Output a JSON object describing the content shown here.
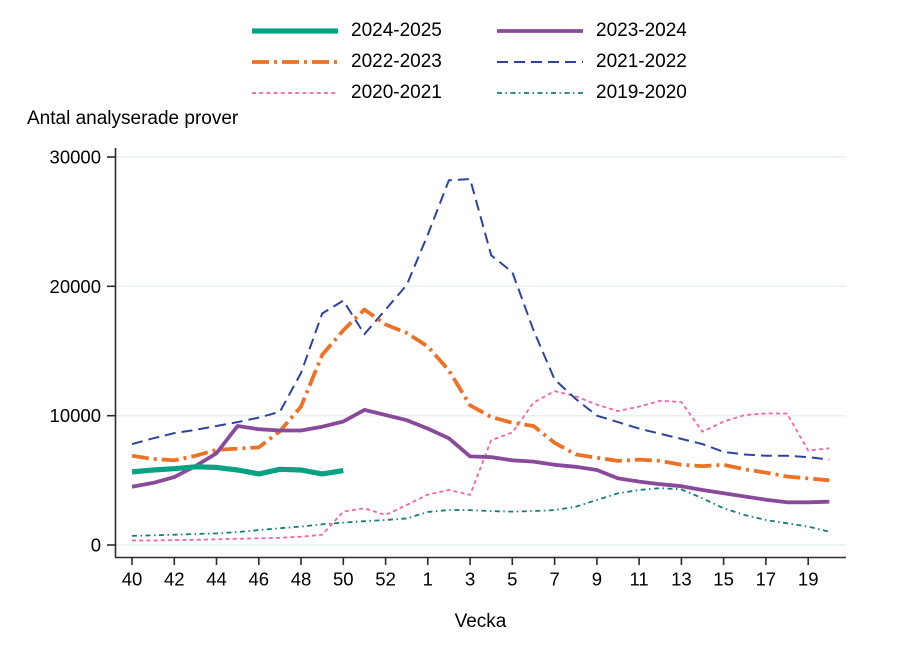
{
  "page": {
    "background": "#ffffff"
  },
  "chart_data": {
    "type": "line",
    "title": "Antal analyserade prover",
    "xlabel": "Vecka",
    "grid": "horizontal",
    "legend_position": "top",
    "axis_color": "#2b2b2b",
    "grid_color": "#e7f0f2",
    "ylim": [
      0,
      30000
    ],
    "x_slot_weeks": [
      "40",
      "41",
      "42",
      "43",
      "44",
      "45",
      "46",
      "47",
      "48",
      "49",
      "50",
      "51",
      "52",
      "53",
      "1",
      "2",
      "3",
      "4",
      "5",
      "6",
      "7",
      "8",
      "9",
      "10",
      "11",
      "12",
      "13",
      "14",
      "15",
      "16",
      "17",
      "18",
      "19",
      "20"
    ],
    "x_ticks": [
      {
        "slot": 0,
        "label": "40"
      },
      {
        "slot": 2,
        "label": "42"
      },
      {
        "slot": 4,
        "label": "44"
      },
      {
        "slot": 6,
        "label": "46"
      },
      {
        "slot": 8,
        "label": "48"
      },
      {
        "slot": 10,
        "label": "50"
      },
      {
        "slot": 12,
        "label": "52"
      },
      {
        "slot": 14,
        "label": "1"
      },
      {
        "slot": 16,
        "label": "3"
      },
      {
        "slot": 18,
        "label": "5"
      },
      {
        "slot": 20,
        "label": "7"
      },
      {
        "slot": 22,
        "label": "9"
      },
      {
        "slot": 24,
        "label": "11"
      },
      {
        "slot": 26,
        "label": "13"
      },
      {
        "slot": 28,
        "label": "15"
      },
      {
        "slot": 30,
        "label": "17"
      },
      {
        "slot": 32,
        "label": "19"
      }
    ],
    "y_ticks": [
      {
        "value": 0,
        "label": "0"
      },
      {
        "value": 10000,
        "label": "10000"
      },
      {
        "value": 20000,
        "label": "20000"
      },
      {
        "value": 30000,
        "label": "30000"
      }
    ],
    "series": [
      {
        "name": "2019-2020",
        "color": "#157d77",
        "stroke_width": 1.8,
        "dash": "5 3.5 1.5 3.5",
        "values": [
          700,
          750,
          800,
          850,
          900,
          1000,
          1150,
          1300,
          1420,
          1600,
          1730,
          1840,
          1930,
          2060,
          2550,
          2710,
          2700,
          2620,
          2580,
          2620,
          2700,
          2960,
          3480,
          4000,
          4250,
          4400,
          4300,
          3610,
          2840,
          2320,
          1930,
          1680,
          1420,
          1030
        ]
      },
      {
        "name": "2020-2021",
        "color": "#f364a8",
        "stroke_width": 1.8,
        "dash": "4 3.2",
        "values": [
          350,
          350,
          380,
          400,
          440,
          480,
          520,
          560,
          640,
          800,
          2580,
          2840,
          2320,
          3090,
          3900,
          4250,
          3870,
          8100,
          8700,
          11000,
          11900,
          11500,
          10850,
          10350,
          10700,
          11150,
          11050,
          8760,
          9540,
          10050,
          10170,
          10170,
          7300,
          7480
        ]
      },
      {
        "name": "2021-2022",
        "color": "#2d449b",
        "stroke_width": 2,
        "dash": "11 6",
        "values": [
          7800,
          8250,
          8650,
          8900,
          9200,
          9500,
          9850,
          10300,
          13300,
          17900,
          18900,
          16300,
          18200,
          20100,
          24000,
          28200,
          28300,
          22400,
          21100,
          16600,
          12800,
          11300,
          10000,
          9500,
          9000,
          8600,
          8200,
          7800,
          7200,
          7000,
          6900,
          6900,
          6800,
          6600
        ]
      },
      {
        "name": "2022-2023",
        "color": "#ed7226",
        "stroke_width": 3.8,
        "dash": "17 5 3 5",
        "values": [
          6900,
          6650,
          6550,
          6900,
          7350,
          7450,
          7550,
          8800,
          10700,
          14700,
          16600,
          18200,
          17050,
          16400,
          15350,
          13500,
          10800,
          9900,
          9450,
          9200,
          7900,
          7000,
          6750,
          6500,
          6600,
          6500,
          6200,
          6100,
          6200,
          5850,
          5600,
          5300,
          5150,
          5000
        ]
      },
      {
        "name": "2023-2024",
        "color": "#8a4a9c",
        "stroke_width": 3.8,
        "dash": null,
        "values": [
          4500,
          4800,
          5250,
          6100,
          7100,
          9200,
          8950,
          8850,
          8850,
          9150,
          9550,
          10450,
          10050,
          9650,
          9000,
          8250,
          6850,
          6800,
          6550,
          6450,
          6200,
          6050,
          5800,
          5150,
          4900,
          4700,
          4550,
          4250,
          4000,
          3750,
          3500,
          3300,
          3300,
          3350
        ]
      },
      {
        "name": "2024-2025",
        "color": "#06a383",
        "stroke_width": 5.2,
        "dash": null,
        "values": [
          5650,
          5800,
          5900,
          6050,
          6000,
          5800,
          5500,
          5850,
          5800,
          5500,
          5750,
          null,
          null,
          null,
          null,
          null,
          null,
          null,
          null,
          null,
          null,
          null,
          null,
          null,
          null,
          null,
          null,
          null,
          null,
          null,
          null,
          null,
          null,
          null
        ]
      }
    ]
  }
}
